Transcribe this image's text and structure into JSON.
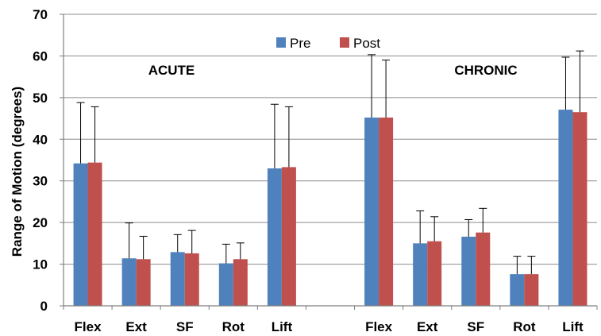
{
  "chart_data": {
    "type": "bar",
    "ylabel": "Range of Motion (degrees)",
    "ylim": [
      0,
      70
    ],
    "yticks": [
      0,
      10,
      20,
      30,
      40,
      50,
      60,
      70
    ],
    "grid": true,
    "legend_position": "top-center",
    "groups": [
      "ACUTE",
      "CHRONIC"
    ],
    "categories": [
      "Flex",
      "Ext",
      "SF",
      "Rot",
      "Lift",
      "",
      "Flex",
      "Ext",
      "SF",
      "Rot",
      "Lift"
    ],
    "series": [
      {
        "name": "Pre",
        "color": "#4F81BD",
        "values": [
          34.2,
          11.4,
          12.9,
          10.2,
          33.0,
          null,
          45.2,
          15.0,
          16.6,
          7.6,
          47.1
        ],
        "error_upper": [
          48.8,
          19.9,
          17.1,
          14.8,
          48.4,
          null,
          60.3,
          22.8,
          20.7,
          11.9,
          59.7
        ]
      },
      {
        "name": "Post",
        "color": "#C0504D",
        "values": [
          34.4,
          11.2,
          12.6,
          11.2,
          33.3,
          null,
          45.2,
          15.5,
          17.6,
          7.6,
          46.5
        ],
        "error_upper": [
          47.8,
          16.7,
          18.1,
          15.1,
          47.8,
          null,
          59.0,
          21.4,
          23.4,
          11.9,
          61.2
        ]
      }
    ]
  }
}
